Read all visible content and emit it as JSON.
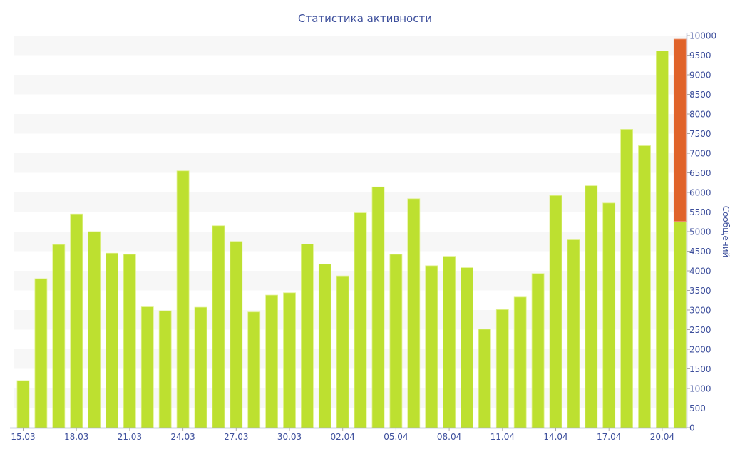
{
  "chart_data": {
    "type": "bar",
    "title": "Статистика активности",
    "ylabel": "Сообщений",
    "xlabel": "",
    "ylim": [
      0,
      10000
    ],
    "ytick_step": 500,
    "yaxis_side": "right",
    "grid": "alternating horizontal bands",
    "stacked": true,
    "categories": [
      "15.03",
      "16.03",
      "17.03",
      "18.03",
      "19.03",
      "20.03",
      "21.03",
      "22.03",
      "23.03",
      "24.03",
      "25.03",
      "26.03",
      "27.03",
      "28.03",
      "29.03",
      "30.03",
      "31.03",
      "01.04",
      "02.04",
      "03.04",
      "04.04",
      "05.04",
      "06.04",
      "07.04",
      "08.04",
      "09.04",
      "10.04",
      "11.04",
      "12.04",
      "13.04",
      "14.04",
      "15.04",
      "16.04",
      "17.04",
      "18.04",
      "19.04",
      "20.04",
      "21.04"
    ],
    "xtick_labels": [
      "15.03",
      "18.03",
      "21.03",
      "24.03",
      "27.03",
      "30.03",
      "02.04",
      "05.04",
      "08.04",
      "11.04",
      "14.04",
      "17.04",
      "20.04"
    ],
    "series": [
      {
        "color": "#bde030",
        "values": [
          1200,
          3800,
          4670,
          5450,
          5000,
          4450,
          4420,
          3080,
          2980,
          6550,
          3070,
          5150,
          4750,
          2950,
          3380,
          3440,
          4680,
          4170,
          3870,
          5480,
          6140,
          4420,
          5840,
          4130,
          4370,
          4080,
          2510,
          3010,
          3330,
          3930,
          5920,
          4790,
          6170,
          5730,
          7610,
          7190,
          9610,
          5260
        ]
      },
      {
        "color": "#e0632a",
        "values": [
          0,
          0,
          0,
          0,
          0,
          0,
          0,
          0,
          0,
          0,
          0,
          0,
          0,
          0,
          0,
          0,
          0,
          0,
          0,
          0,
          0,
          0,
          0,
          0,
          0,
          0,
          0,
          0,
          0,
          0,
          0,
          0,
          0,
          0,
          0,
          0,
          0,
          4650
        ]
      }
    ],
    "colors": {
      "axis": "#3d4f9c",
      "band": "#f7f7f7"
    }
  }
}
